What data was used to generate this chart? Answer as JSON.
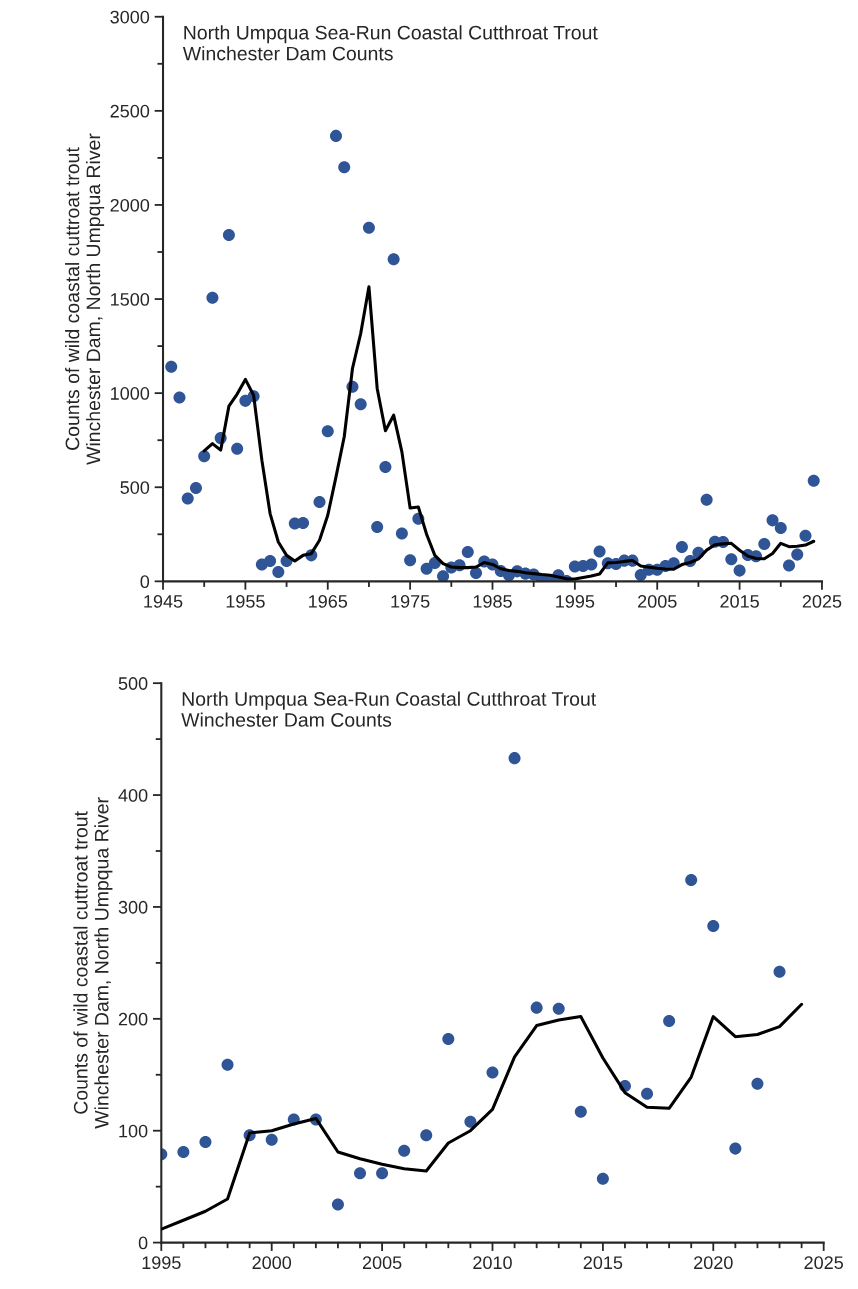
{
  "chart_data": [
    {
      "type": "scatter",
      "title": "North Umpqua Sea-Run Coastal Cutthroat Trout\nWinchester Dam Counts",
      "ylabel": "Counts of wild coastal cuttroat trout\nWinchester Dam, North Umpqua River",
      "xlim": [
        1945,
        2025
      ],
      "xticks": [
        1945,
        {
          "value": 1950,
          "label": null
        },
        1955,
        {
          "value": 1960,
          "label": null
        },
        1965,
        {
          "value": 1970,
          "label": null
        },
        1975,
        {
          "value": 1980,
          "label": null
        },
        1985,
        {
          "value": 1990,
          "label": null
        },
        1995,
        {
          "value": 2000,
          "label": null
        },
        2005,
        {
          "value": 2010,
          "label": null
        },
        2015,
        {
          "value": 2020,
          "label": null
        },
        2025
      ],
      "ylim": [
        0,
        3000
      ],
      "yticks": [
        0,
        {
          "value": 250,
          "label": null
        },
        500,
        {
          "value": 750,
          "label": null
        },
        1000,
        {
          "value": 1250,
          "label": null
        },
        1500,
        {
          "value": 1750,
          "label": null
        },
        2000,
        {
          "value": 2250,
          "label": null
        },
        2500,
        {
          "value": 2750,
          "label": null
        },
        3000
      ],
      "grid": false,
      "legend": false,
      "series": [
        {
          "color": "#2f5597",
          "marker": "circle",
          "x": [
            1946,
            1947,
            1948,
            1949,
            1950,
            1951,
            1952,
            1953,
            1954,
            1955,
            1956,
            1957,
            1958,
            1959,
            1960,
            1961,
            1962,
            1963,
            1964,
            1965,
            1966,
            1967,
            1968,
            1969,
            1970,
            1971,
            1972,
            1973,
            1974,
            1975,
            1976,
            1977,
            1978,
            1979,
            1980,
            1981,
            1982,
            1983,
            1984,
            1985,
            1986,
            1987,
            1988,
            1989,
            1990,
            1991,
            1992,
            1993,
            1994,
            1995,
            1996,
            1997,
            1998,
            1999,
            2000,
            2001,
            2002,
            2003,
            2004,
            2005,
            2006,
            2007,
            2008,
            2009,
            2010,
            2011,
            2012,
            2013,
            2014,
            2015,
            2016,
            2017,
            2018,
            2019,
            2020,
            2021,
            2022,
            2023,
            2024
          ],
          "values": [
            1140,
            977,
            440,
            496,
            665,
            1507,
            761,
            1840,
            704,
            959,
            984,
            90,
            108,
            50,
            108,
            307,
            310,
            138,
            422,
            798,
            2367,
            2200,
            1034,
            941,
            1879,
            289,
            608,
            1711,
            254,
            112,
            333,
            67,
            98,
            27,
            73,
            85,
            156,
            44,
            105,
            90,
            55,
            32,
            53,
            41,
            36,
            9,
            2,
            32,
            2,
            79,
            81,
            90,
            159,
            96,
            92,
            110,
            110,
            34,
            62,
            62,
            82,
            96,
            182,
            108,
            152,
            433,
            210,
            209,
            117,
            57,
            140,
            133,
            198,
            324,
            283,
            84,
            142,
            242,
            535
          ]
        },
        {
          "type": "line",
          "color": "#000000",
          "marker": "none",
          "line_style": "solid",
          "x": [
            1950,
            1951,
            1952,
            1953,
            1954,
            1955,
            1956,
            1957,
            1958,
            1959,
            1960,
            1961,
            1962,
            1963,
            1964,
            1965,
            1966,
            1967,
            1968,
            1969,
            1970,
            1971,
            1972,
            1973,
            1974,
            1975,
            1976,
            1977,
            1978,
            1979,
            1980,
            1981,
            1982,
            1983,
            1984,
            1985,
            1986,
            1987,
            1988,
            1989,
            1990,
            1991,
            1992,
            1993,
            1994,
            1995,
            1996,
            1997,
            1998,
            1999,
            2000,
            2001,
            2002,
            2003,
            2004,
            2005,
            2006,
            2007,
            2008,
            2009,
            2010,
            2011,
            2012,
            2013,
            2014,
            2015,
            2016,
            2017,
            2018,
            2019,
            2020,
            2021,
            2022,
            2023,
            2024
          ],
          "values": [
            693,
            732,
            697,
            931,
            995,
            1073,
            989,
            644,
            360,
            209,
            138,
            108,
            138,
            147,
            218,
            351,
            555,
            768,
            1131,
            1317,
            1565,
            1025,
            800,
            883,
            688,
            390,
            395,
            250,
            138,
            94,
            76,
            73,
            73,
            76,
            100,
            90,
            67,
            58,
            53,
            46,
            41,
            36,
            32,
            23,
            14,
            12,
            20,
            28,
            39,
            98,
            100,
            106,
            111,
            81,
            75,
            70,
            66,
            64,
            89,
            100,
            119,
            166,
            194,
            199,
            202,
            165,
            134,
            121,
            120,
            148,
            202,
            184,
            186,
            193,
            213
          ]
        }
      ]
    },
    {
      "type": "scatter",
      "title": "North Umpqua Sea-Run Coastal Cutthroat Trout\nWinchester Dam Counts",
      "ylabel": "Counts of wild coastal cuttroat trout\nWinchester Dam, North Umpqua River",
      "xlim": [
        1995,
        2025
      ],
      "xticks": [
        1995,
        {
          "value": 1996,
          "label": null
        },
        {
          "value": 1997,
          "label": null
        },
        {
          "value": 1998,
          "label": null
        },
        {
          "value": 1999,
          "label": null
        },
        2000,
        {
          "value": 2001,
          "label": null
        },
        {
          "value": 2002,
          "label": null
        },
        {
          "value": 2003,
          "label": null
        },
        {
          "value": 2004,
          "label": null
        },
        2005,
        {
          "value": 2006,
          "label": null
        },
        {
          "value": 2007,
          "label": null
        },
        {
          "value": 2008,
          "label": null
        },
        {
          "value": 2009,
          "label": null
        },
        2010,
        {
          "value": 2011,
          "label": null
        },
        {
          "value": 2012,
          "label": null
        },
        {
          "value": 2013,
          "label": null
        },
        {
          "value": 2014,
          "label": null
        },
        2015,
        {
          "value": 2016,
          "label": null
        },
        {
          "value": 2017,
          "label": null
        },
        {
          "value": 2018,
          "label": null
        },
        {
          "value": 2019,
          "label": null
        },
        2020,
        {
          "value": 2021,
          "label": null
        },
        {
          "value": 2022,
          "label": null
        },
        {
          "value": 2023,
          "label": null
        },
        {
          "value": 2024,
          "label": null
        },
        2025
      ],
      "ylim": [
        0,
        500
      ],
      "yticks": [
        0,
        {
          "value": 50,
          "label": null
        },
        100,
        {
          "value": 150,
          "label": null
        },
        200,
        {
          "value": 250,
          "label": null
        },
        300,
        {
          "value": 350,
          "label": null
        },
        400,
        {
          "value": 450,
          "label": null
        },
        500
      ],
      "grid": false,
      "legend": false,
      "series": [
        {
          "color": "#2f5597",
          "marker": "circle",
          "x": [
            1995,
            1996,
            1997,
            1998,
            1999,
            2000,
            2001,
            2002,
            2003,
            2004,
            2005,
            2006,
            2007,
            2008,
            2009,
            2010,
            2011,
            2012,
            2013,
            2014,
            2015,
            2016,
            2017,
            2018,
            2019,
            2020,
            2021,
            2022,
            2023
          ],
          "values": [
            79,
            81,
            90,
            159,
            96,
            92,
            110,
            110,
            34,
            62,
            62,
            82,
            96,
            182,
            108,
            152,
            433,
            210,
            209,
            117,
            57,
            140,
            133,
            198,
            324,
            283,
            84,
            142,
            242
          ]
        },
        {
          "type": "line",
          "color": "#000000",
          "marker": "none",
          "line_style": "solid",
          "x": [
            1995,
            1996,
            1997,
            1998,
            1999,
            2000,
            2001,
            2002,
            2003,
            2004,
            2005,
            2006,
            2007,
            2008,
            2009,
            2010,
            2011,
            2012,
            2013,
            2014,
            2015,
            2016,
            2017,
            2018,
            2019,
            2020,
            2021,
            2022,
            2023,
            2024
          ],
          "values": [
            12,
            20,
            28,
            39,
            98,
            100,
            106,
            111,
            81,
            75,
            70,
            66,
            64,
            89,
            100,
            119,
            166,
            194,
            199,
            202,
            165,
            134,
            121,
            120,
            148,
            202,
            184,
            186,
            193,
            213
          ]
        }
      ]
    }
  ]
}
